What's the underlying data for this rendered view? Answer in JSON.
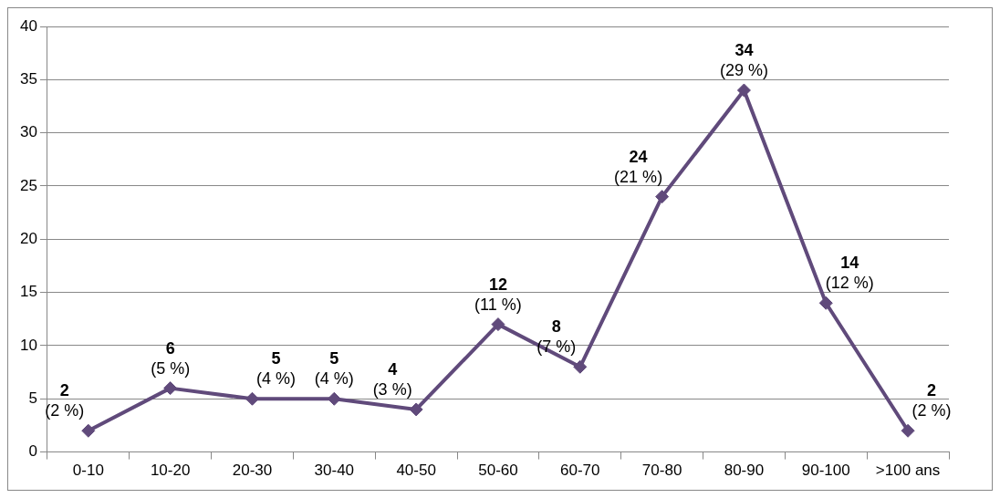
{
  "chart_data": {
    "type": "line",
    "categories": [
      "0-10",
      "10-20",
      "20-30",
      "30-40",
      "40-50",
      "50-60",
      "60-70",
      "70-80",
      "80-90",
      "90-100",
      ">100 ans"
    ],
    "series": [
      {
        "color": "#604a7b",
        "values": [
          2,
          6,
          5,
          5,
          4,
          12,
          8,
          24,
          34,
          14,
          2
        ],
        "value_labels": [
          "2\n(2 %)",
          "6\n(5 %)",
          "5\n(4 %)",
          "5\n(4 %)",
          "4\n(3 %)",
          "12\n(11 %)",
          "8\n(7 %)",
          "24\n(21 %)",
          "34\n(29 %)",
          "14\n(12 %)",
          "2\n(2 %)"
        ]
      }
    ],
    "ylim": [
      0,
      40
    ],
    "yticks": [
      0,
      5,
      10,
      15,
      20,
      25,
      30,
      35,
      40
    ],
    "grid": "y",
    "legend": false,
    "marker": "diamond",
    "line_style": "solid"
  }
}
